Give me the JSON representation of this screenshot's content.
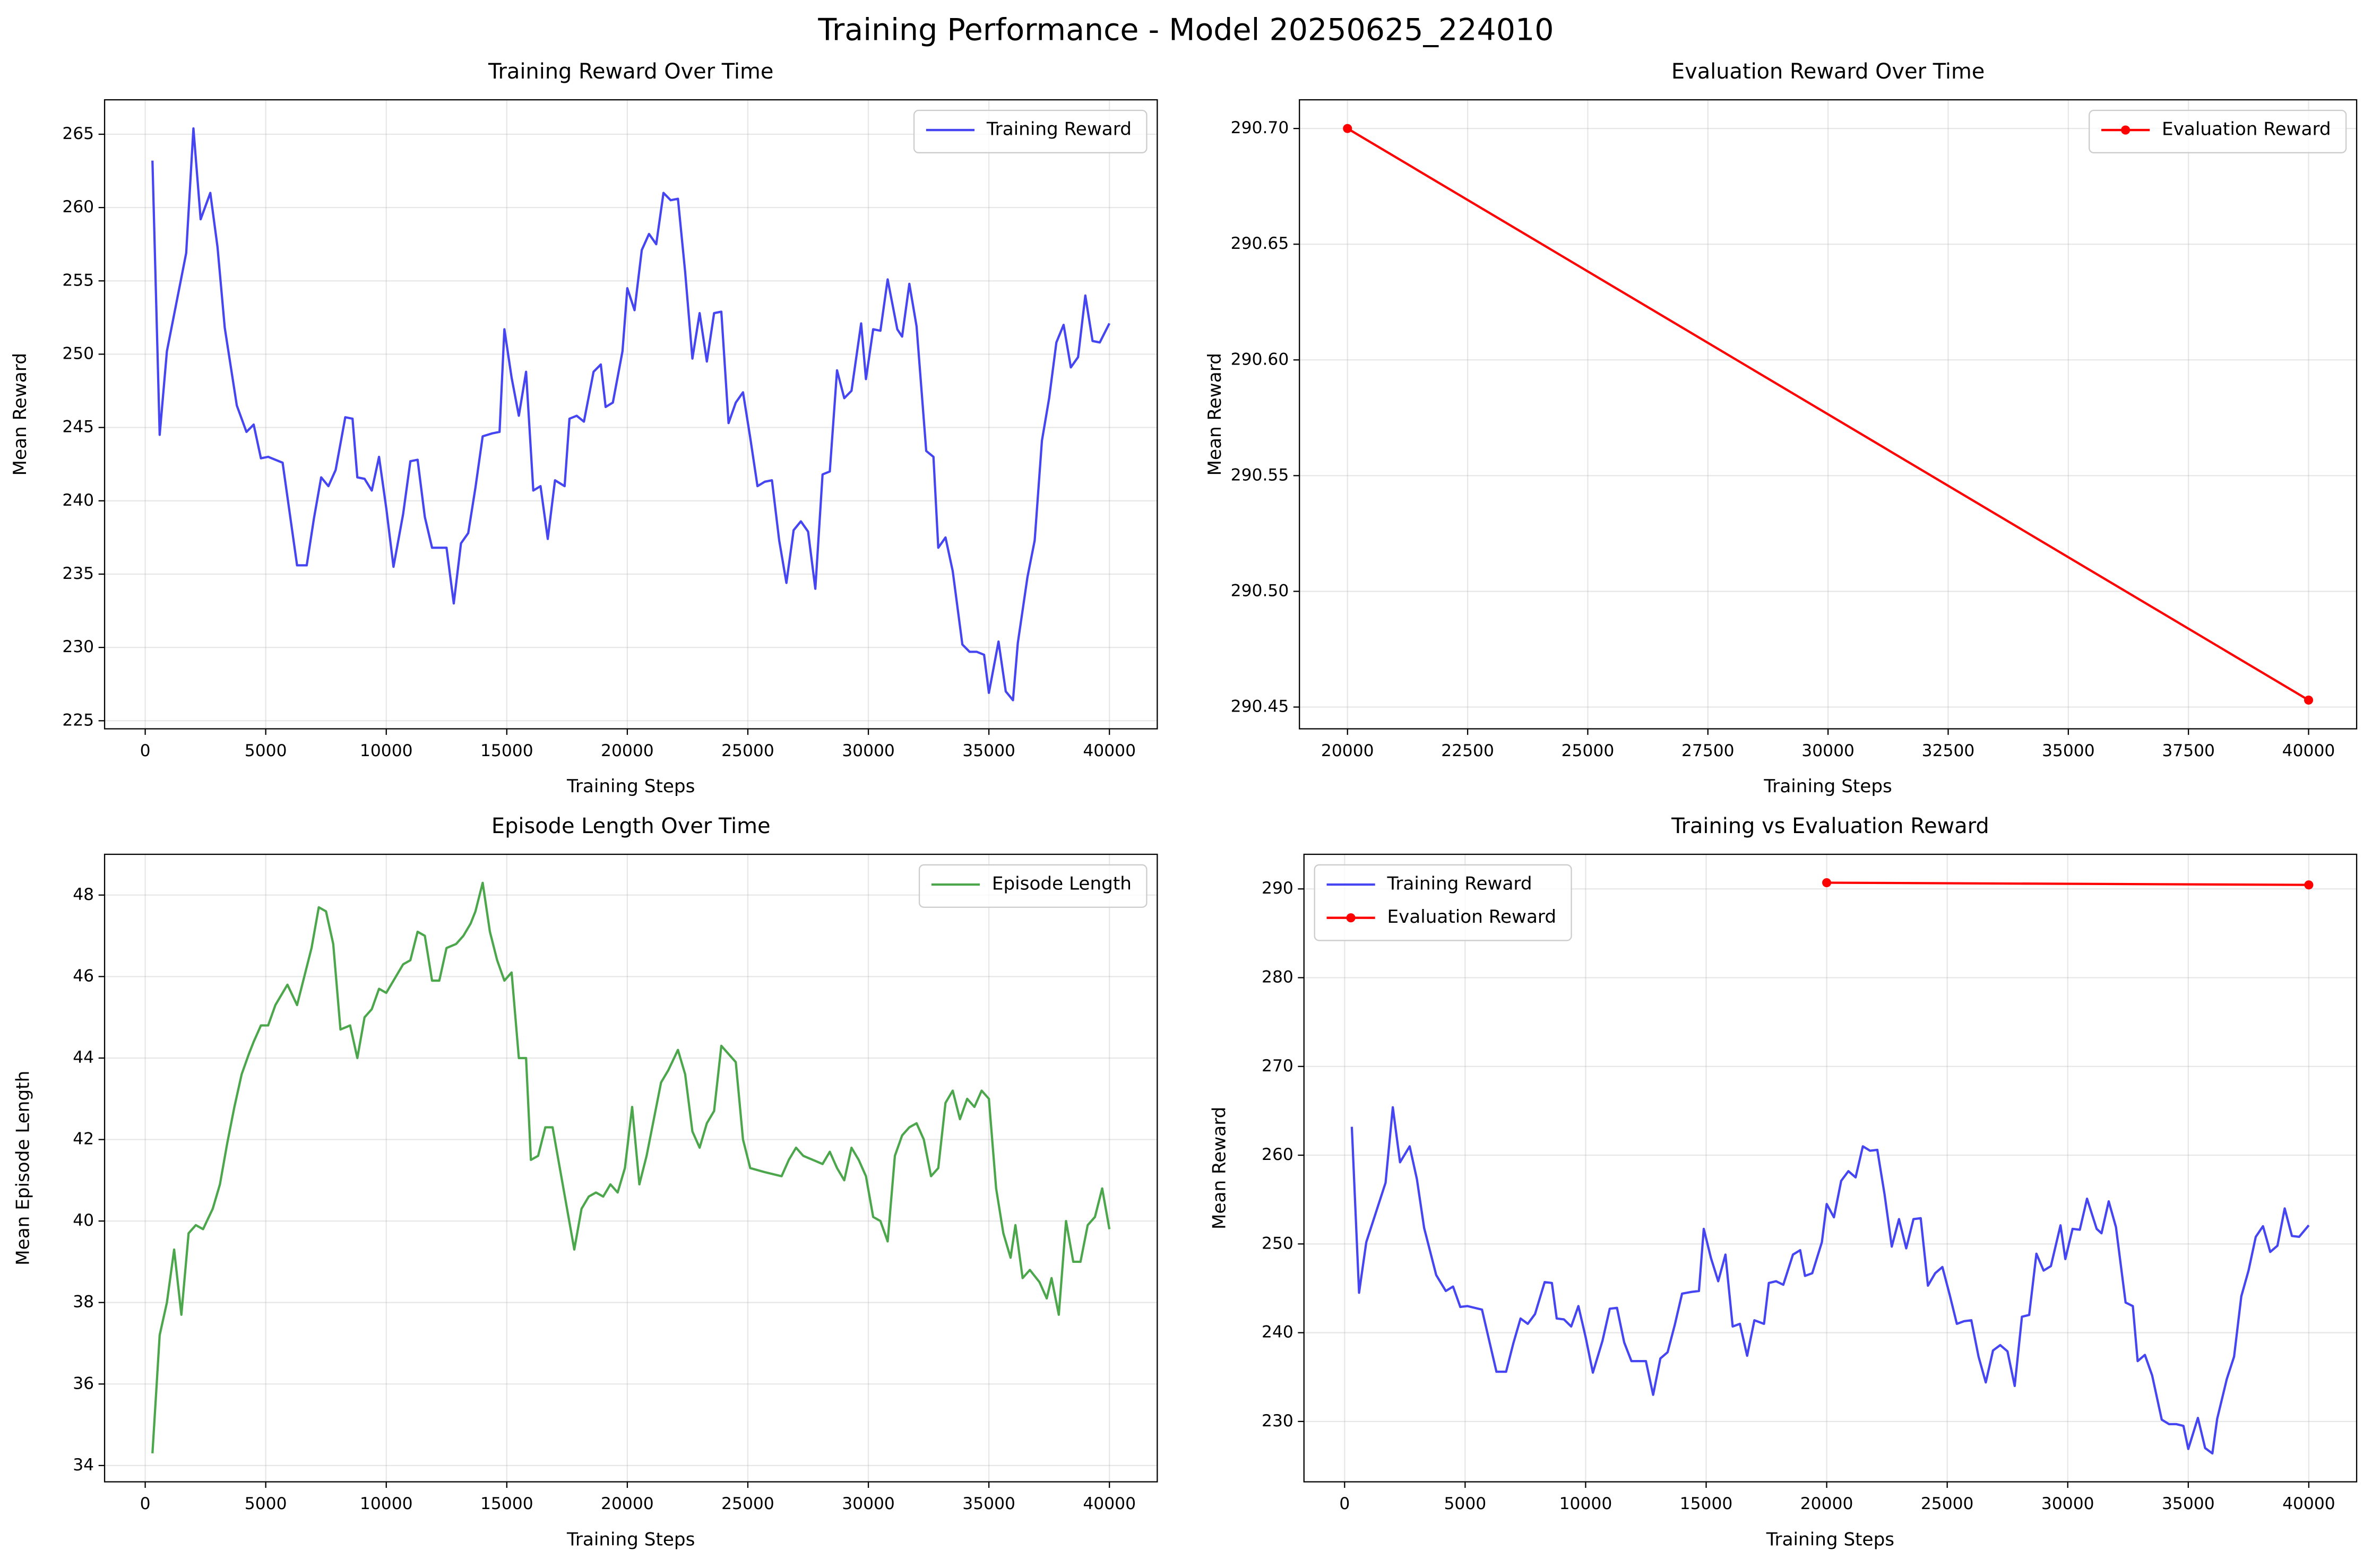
{
  "title": "Training Performance - Model 20250625_224010",
  "chart_data": [
    {
      "type": "line",
      "title": "Training Reward Over Time",
      "xlabel": "Training Steps",
      "ylabel": "Mean Reward",
      "xlim": [
        -1685,
        41985
      ],
      "xticks": [
        0,
        5000,
        10000,
        15000,
        20000,
        25000,
        30000,
        35000,
        40000
      ],
      "ylim": [
        224.45,
        267.35
      ],
      "yticks": [
        225,
        230,
        235,
        240,
        245,
        250,
        255,
        260,
        265
      ],
      "grid": true,
      "legend": "upper right",
      "series": [
        {
          "name": "Training Reward",
          "color": "#4545f2",
          "x": [
            300,
            600,
            900,
            1700,
            2000,
            2300,
            2700,
            3000,
            3300,
            3800,
            4200,
            4500,
            4800,
            5100,
            5700,
            6300,
            6700,
            7000,
            7300,
            7600,
            7900,
            8300,
            8600,
            8800,
            9100,
            9400,
            9700,
            10000,
            10300,
            10700,
            11000,
            11300,
            11600,
            11900,
            12500,
            12800,
            13100,
            13400,
            13700,
            14000,
            14400,
            14700,
            14900,
            15200,
            15500,
            15800,
            16100,
            16400,
            16700,
            17000,
            17400,
            17600,
            17900,
            18200,
            18600,
            18900,
            19100,
            19400,
            19800,
            20000,
            20300,
            20600,
            20900,
            21200,
            21500,
            21800,
            22100,
            22400,
            22700,
            23000,
            23300,
            23600,
            23900,
            24200,
            24500,
            24800,
            25100,
            25400,
            25700,
            26000,
            26300,
            26600,
            26900,
            27200,
            27500,
            27800,
            28100,
            28400,
            28700,
            29000,
            29300,
            29700,
            29900,
            30200,
            30500,
            30800,
            31200,
            31400,
            31700,
            32000,
            32400,
            32700,
            32900,
            33200,
            33500,
            33900,
            34200,
            34500,
            34800,
            35000,
            35400,
            35700,
            36000,
            36200,
            36600,
            36900,
            37200,
            37500,
            37800,
            38100,
            38400,
            38700,
            39000,
            39300,
            39600,
            40000
          ],
          "values": [
            263.2,
            244.5,
            250.2,
            256.9,
            265.4,
            259.2,
            261.0,
            257.3,
            251.8,
            246.5,
            244.7,
            245.2,
            242.9,
            243.0,
            242.6,
            235.6,
            235.6,
            238.8,
            241.6,
            241.0,
            242.1,
            245.7,
            245.6,
            241.6,
            241.5,
            240.7,
            243.0,
            239.5,
            235.5,
            239.1,
            242.7,
            242.8,
            238.9,
            236.8,
            236.8,
            233.0,
            237.1,
            237.8,
            240.9,
            244.4,
            244.6,
            244.7,
            251.7,
            248.4,
            245.8,
            248.8,
            240.7,
            241.0,
            237.4,
            241.4,
            241.0,
            245.6,
            245.8,
            245.4,
            248.8,
            249.3,
            246.4,
            246.7,
            250.2,
            254.5,
            253.0,
            257.1,
            258.2,
            257.5,
            261.0,
            260.5,
            260.6,
            255.6,
            249.7,
            252.8,
            249.5,
            252.8,
            252.9,
            245.3,
            246.7,
            247.4,
            244.3,
            241.0,
            241.3,
            241.4,
            237.3,
            234.4,
            238.0,
            238.6,
            237.9,
            234.0,
            241.8,
            242.0,
            248.9,
            247.0,
            247.5,
            252.1,
            248.3,
            251.7,
            251.6,
            255.1,
            251.7,
            251.2,
            254.8,
            251.9,
            243.4,
            243.0,
            236.8,
            237.5,
            235.2,
            230.2,
            229.7,
            229.7,
            229.5,
            226.9,
            230.4,
            227.0,
            226.4,
            230.3,
            234.8,
            237.3,
            244.1,
            247.0,
            250.8,
            252.0,
            249.1,
            249.8,
            254.0,
            250.9,
            250.8,
            252.1
          ]
        }
      ]
    },
    {
      "type": "line",
      "title": "Evaluation Reward Over Time",
      "xlabel": "Training Steps",
      "ylabel": "Mean Reward",
      "xlim": [
        19000,
        41000
      ],
      "xticks": [
        20000,
        22500,
        25000,
        27500,
        30000,
        32500,
        35000,
        37500,
        40000
      ],
      "ylim": [
        290.4406,
        290.7124
      ],
      "yticks": [
        {
          "value": 290.45,
          "label": "290.45"
        },
        {
          "value": 290.5,
          "label": "290.50"
        },
        {
          "value": 290.55,
          "label": "290.55"
        },
        {
          "value": 290.6,
          "label": "290.60"
        },
        {
          "value": 290.65,
          "label": "290.65"
        },
        {
          "value": 290.7,
          "label": "290.70"
        }
      ],
      "grid": true,
      "legend": "upper right",
      "series": [
        {
          "name": "Evaluation Reward",
          "color": "#ff0000",
          "marker": "o",
          "x": [
            20000,
            40000
          ],
          "values": [
            290.7,
            290.453
          ]
        }
      ]
    },
    {
      "type": "line",
      "title": "Episode Length Over Time",
      "xlabel": "Training Steps",
      "ylabel": "Mean Episode Length",
      "xlim": [
        -1685,
        41985
      ],
      "xticks": [
        0,
        5000,
        10000,
        15000,
        20000,
        25000,
        30000,
        35000,
        40000
      ],
      "ylim": [
        33.6,
        49.0
      ],
      "yticks": [
        34,
        36,
        38,
        40,
        42,
        44,
        46,
        48
      ],
      "grid": true,
      "legend": "upper right",
      "series": [
        {
          "name": "Episode Length",
          "color": "#4ca64c",
          "x": [
            300,
            600,
            900,
            1200,
            1500,
            1800,
            2100,
            2400,
            2800,
            3100,
            3400,
            3700,
            4000,
            4300,
            4500,
            4800,
            5100,
            5400,
            5600,
            5900,
            6300,
            6600,
            6900,
            7200,
            7500,
            7800,
            8100,
            8500,
            8800,
            9100,
            9400,
            9700,
            10000,
            10300,
            10700,
            11000,
            11300,
            11600,
            11900,
            12200,
            12500,
            12900,
            13200,
            13500,
            13700,
            14000,
            14300,
            14600,
            14900,
            15200,
            15500,
            15800,
            16000,
            16300,
            16600,
            16900,
            17200,
            17500,
            17800,
            18100,
            18400,
            18700,
            19000,
            19300,
            19600,
            19900,
            20200,
            20500,
            20800,
            21100,
            21400,
            21700,
            22100,
            22400,
            22700,
            23000,
            23300,
            23600,
            23900,
            24200,
            24500,
            24800,
            25100,
            25700,
            26400,
            26700,
            27000,
            27300,
            27700,
            28100,
            28400,
            28700,
            29000,
            29300,
            29600,
            29900,
            30200,
            30500,
            30800,
            31100,
            31400,
            31700,
            32000,
            32300,
            32600,
            32900,
            33200,
            33500,
            33800,
            34100,
            34400,
            34700,
            35000,
            35300,
            35600,
            35900,
            36100,
            36400,
            36700,
            37100,
            37400,
            37600,
            37900,
            38200,
            38500,
            38800,
            39100,
            39400,
            39700,
            40000
          ],
          "values": [
            34.3,
            37.2,
            38.0,
            39.3,
            37.7,
            39.7,
            39.9,
            39.8,
            40.3,
            40.9,
            41.9,
            42.8,
            43.6,
            44.1,
            44.4,
            44.8,
            44.8,
            45.3,
            45.5,
            45.8,
            45.3,
            46.0,
            46.7,
            47.7,
            47.6,
            46.8,
            44.7,
            44.8,
            44.0,
            45.0,
            45.2,
            45.7,
            45.6,
            45.9,
            46.3,
            46.4,
            47.1,
            47.0,
            45.9,
            45.9,
            46.7,
            46.8,
            47.0,
            47.3,
            47.6,
            48.3,
            47.1,
            46.4,
            45.9,
            46.1,
            44.0,
            44.0,
            41.5,
            41.6,
            42.3,
            42.3,
            41.3,
            40.3,
            39.3,
            40.3,
            40.6,
            40.7,
            40.6,
            40.9,
            40.7,
            41.3,
            42.8,
            40.9,
            41.6,
            42.5,
            43.4,
            43.7,
            44.2,
            43.6,
            42.2,
            41.8,
            42.4,
            42.7,
            44.3,
            44.1,
            43.9,
            42.0,
            41.3,
            41.2,
            41.1,
            41.5,
            41.8,
            41.6,
            41.5,
            41.4,
            41.7,
            41.3,
            41.0,
            41.8,
            41.5,
            41.1,
            40.1,
            40.0,
            39.5,
            41.6,
            42.1,
            42.3,
            42.4,
            42.0,
            41.1,
            41.3,
            42.9,
            43.2,
            42.5,
            43.0,
            42.8,
            43.2,
            43.0,
            40.8,
            39.7,
            39.1,
            39.9,
            38.6,
            38.8,
            38.5,
            38.1,
            38.6,
            37.7,
            40.0,
            39.0,
            39.0,
            39.9,
            40.1,
            40.8,
            39.8
          ]
        }
      ]
    },
    {
      "type": "line",
      "title": "Training vs Evaluation Reward",
      "xlabel": "Training Steps",
      "ylabel": "Mean Reward",
      "xlim": [
        -1685,
        41985
      ],
      "xticks": [
        0,
        5000,
        10000,
        15000,
        20000,
        25000,
        30000,
        35000,
        40000
      ],
      "ylim": [
        223.2,
        293.9
      ],
      "yticks": [
        230,
        240,
        250,
        260,
        270,
        280,
        290
      ],
      "grid": true,
      "legend": "upper left",
      "series": [
        {
          "name": "Training Reward",
          "color": "#4545f2",
          "x": [
            300,
            600,
            900,
            1700,
            2000,
            2300,
            2700,
            3000,
            3300,
            3800,
            4200,
            4500,
            4800,
            5100,
            5700,
            6300,
            6700,
            7000,
            7300,
            7600,
            7900,
            8300,
            8600,
            8800,
            9100,
            9400,
            9700,
            10000,
            10300,
            10700,
            11000,
            11300,
            11600,
            11900,
            12500,
            12800,
            13100,
            13400,
            13700,
            14000,
            14400,
            14700,
            14900,
            15200,
            15500,
            15800,
            16100,
            16400,
            16700,
            17000,
            17400,
            17600,
            17900,
            18200,
            18600,
            18900,
            19100,
            19400,
            19800,
            20000,
            20300,
            20600,
            20900,
            21200,
            21500,
            21800,
            22100,
            22400,
            22700,
            23000,
            23300,
            23600,
            23900,
            24200,
            24500,
            24800,
            25100,
            25400,
            25700,
            26000,
            26300,
            26600,
            26900,
            27200,
            27500,
            27800,
            28100,
            28400,
            28700,
            29000,
            29300,
            29700,
            29900,
            30200,
            30500,
            30800,
            31200,
            31400,
            31700,
            32000,
            32400,
            32700,
            32900,
            33200,
            33500,
            33900,
            34200,
            34500,
            34800,
            35000,
            35400,
            35700,
            36000,
            36200,
            36600,
            36900,
            37200,
            37500,
            37800,
            38100,
            38400,
            38700,
            39000,
            39300,
            39600,
            40000
          ],
          "values": [
            263.2,
            244.5,
            250.2,
            256.9,
            265.4,
            259.2,
            261.0,
            257.3,
            251.8,
            246.5,
            244.7,
            245.2,
            242.9,
            243.0,
            242.6,
            235.6,
            235.6,
            238.8,
            241.6,
            241.0,
            242.1,
            245.7,
            245.6,
            241.6,
            241.5,
            240.7,
            243.0,
            239.5,
            235.5,
            239.1,
            242.7,
            242.8,
            238.9,
            236.8,
            236.8,
            233.0,
            237.1,
            237.8,
            240.9,
            244.4,
            244.6,
            244.7,
            251.7,
            248.4,
            245.8,
            248.8,
            240.7,
            241.0,
            237.4,
            241.4,
            241.0,
            245.6,
            245.8,
            245.4,
            248.8,
            249.3,
            246.4,
            246.7,
            250.2,
            254.5,
            253.0,
            257.1,
            258.2,
            257.5,
            261.0,
            260.5,
            260.6,
            255.6,
            249.7,
            252.8,
            249.5,
            252.8,
            252.9,
            245.3,
            246.7,
            247.4,
            244.3,
            241.0,
            241.3,
            241.4,
            237.3,
            234.4,
            238.0,
            238.6,
            237.9,
            234.0,
            241.8,
            242.0,
            248.9,
            247.0,
            247.5,
            252.1,
            248.3,
            251.7,
            251.6,
            255.1,
            251.7,
            251.2,
            254.8,
            251.9,
            243.4,
            243.0,
            236.8,
            237.5,
            235.2,
            230.2,
            229.7,
            229.7,
            229.5,
            226.9,
            230.4,
            227.0,
            226.4,
            230.3,
            234.8,
            237.3,
            244.1,
            247.0,
            250.8,
            252.0,
            249.1,
            249.8,
            254.0,
            250.9,
            250.8,
            252.1
          ]
        },
        {
          "name": "Evaluation Reward",
          "color": "#ff0000",
          "marker": "o",
          "x": [
            20000,
            40000
          ],
          "values": [
            290.7,
            290.453
          ]
        }
      ]
    }
  ]
}
